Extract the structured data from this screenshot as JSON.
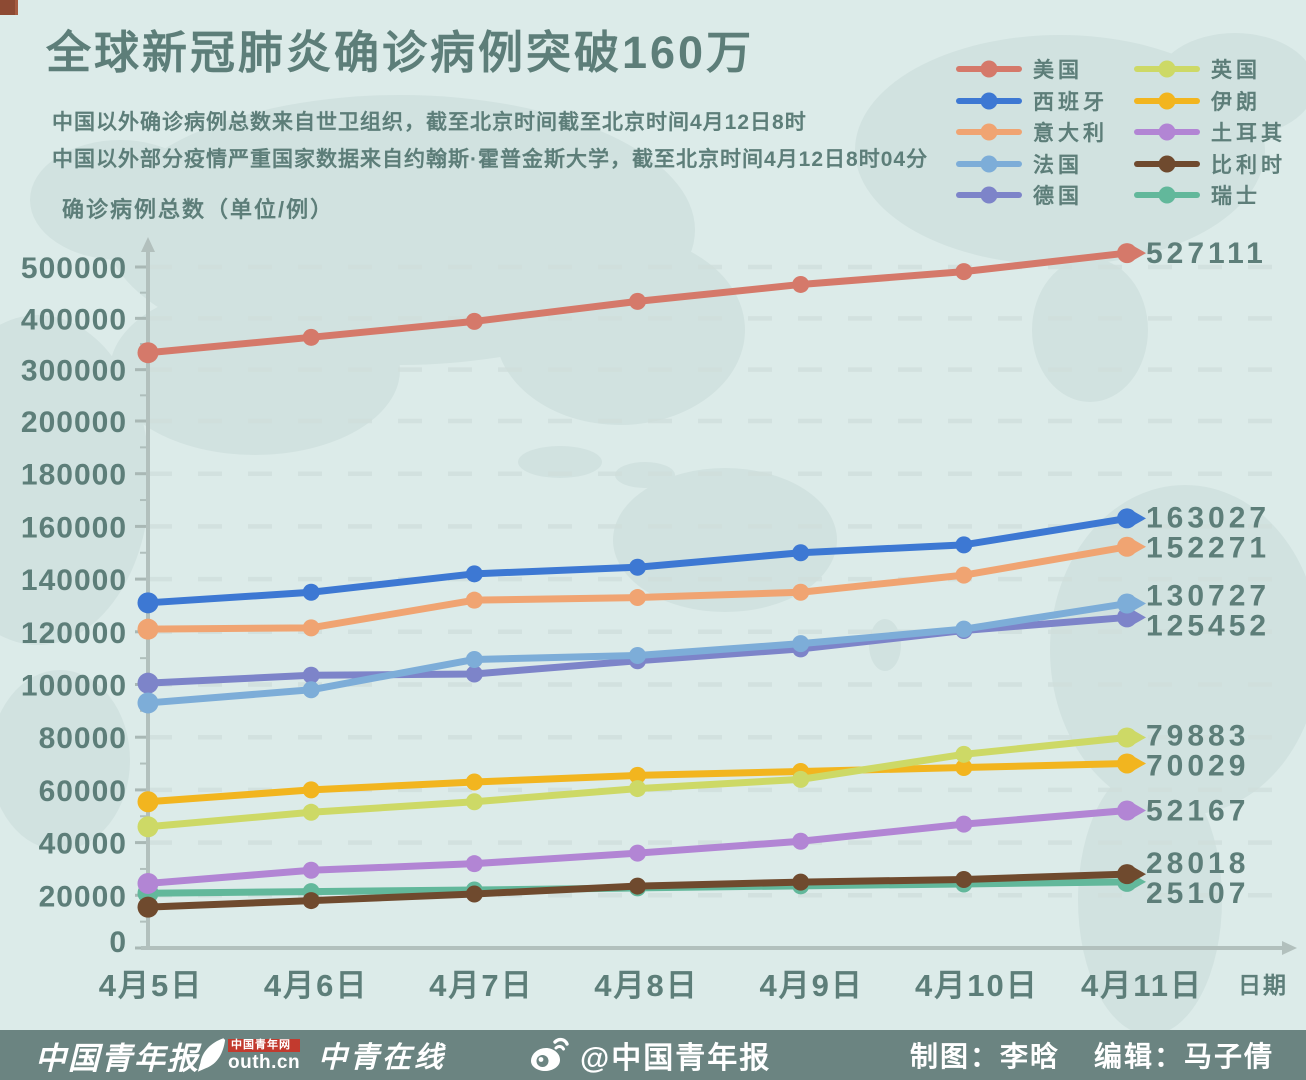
{
  "title": "全球新冠肺炎确诊病例突破160万",
  "subtitle1": "中国以外确诊病例总数来自世卫组织，截至北京时间截至北京时间4月12日8时",
  "subtitle2": "中国以外部分疫情严重国家数据来自约翰斯·霍普金斯大学，截至北京时间4月12日8时04分",
  "chart_data": {
    "type": "line",
    "ylabel": "确诊病例总数（单位/例）",
    "xlabel": "日期",
    "categories": [
      "4月5日",
      "4月6日",
      "4月7日",
      "4月8日",
      "4月9日",
      "4月10日",
      "4月11日"
    ],
    "y_ticks": [
      0,
      20000,
      40000,
      60000,
      80000,
      100000,
      120000,
      140000,
      160000,
      180000,
      200000,
      300000,
      400000,
      500000
    ],
    "y_axis_note": "axis compressed above 200000: 100000 per step at same spacing as 20000 steps below",
    "grid": "dashed-horizontal",
    "legend_position": "top-right",
    "series": [
      {
        "name": "美国",
        "color": "#d5796a",
        "values": [
          333000,
          363000,
          394000,
          433000,
          466000,
          491000,
          527111
        ],
        "end_label": "527111"
      },
      {
        "name": "西班牙",
        "color": "#3d78d3",
        "values": [
          131000,
          135000,
          142000,
          144500,
          150000,
          153000,
          163027
        ],
        "end_label": "163027"
      },
      {
        "name": "意大利",
        "color": "#f0a472",
        "values": [
          121000,
          121500,
          132000,
          133000,
          135000,
          141500,
          152271
        ],
        "end_label": "152271"
      },
      {
        "name": "法国",
        "color": "#7dadd8",
        "values": [
          93000,
          98000,
          109500,
          111000,
          115500,
          121000,
          130727
        ],
        "end_label": "130727"
      },
      {
        "name": "德国",
        "color": "#7d84c9",
        "values": [
          100500,
          103500,
          104000,
          109000,
          113500,
          120500,
          125452
        ],
        "end_label": "125452"
      },
      {
        "name": "英国",
        "color": "#cdd966",
        "values": [
          46000,
          51500,
          55500,
          60500,
          64000,
          73500,
          79883
        ],
        "end_label": "79883"
      },
      {
        "name": "伊朗",
        "color": "#f2b51f",
        "values": [
          55500,
          60000,
          63000,
          65500,
          67000,
          68500,
          70029
        ],
        "end_label": "70029"
      },
      {
        "name": "土耳其",
        "color": "#b285d4",
        "values": [
          24500,
          29500,
          32000,
          36000,
          40500,
          47000,
          52167
        ],
        "end_label": "52167"
      },
      {
        "name": "比利时",
        "color": "#6f4a2e",
        "values": [
          15500,
          18000,
          20500,
          23500,
          25000,
          26000,
          28018
        ],
        "end_label": "28018"
      },
      {
        "name": "瑞士",
        "color": "#62b89b",
        "values": [
          20800,
          21400,
          22000,
          22800,
          23600,
          24300,
          25107
        ],
        "end_label": "25107"
      }
    ]
  },
  "footer": {
    "logo_cyd": "中国青年报",
    "logo_youth_cn_top": "中国青年网",
    "logo_youth_cn_bottom": "outh.cn",
    "logo_zqzx": "中青在线",
    "weibo_handle": "@中国青年报",
    "credit_design": "制图：李晗",
    "credit_editor": "编辑：马子倩"
  },
  "colors": {
    "background": "#dcebe9",
    "map_silhouette": "#c9dbd9",
    "text": "#5d7e79",
    "axis": "#b2c0bd",
    "grid": "#cfdedb",
    "footer_bg": "#6b8481",
    "footer_text": "#ffffff",
    "corner_mark": "#8d4a33"
  }
}
